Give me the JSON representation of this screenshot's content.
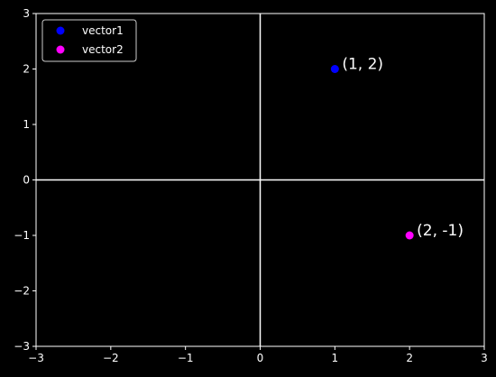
{
  "chart_data": {
    "type": "scatter",
    "title": "",
    "xlabel": "",
    "ylabel": "",
    "xlim": [
      -3,
      3
    ],
    "ylim": [
      -3,
      3
    ],
    "x_ticks": [
      -3,
      -2,
      -1,
      0,
      1,
      2,
      3
    ],
    "y_ticks": [
      -3,
      -2,
      -1,
      0,
      1,
      2,
      3
    ],
    "x_tick_labels": [
      "−3",
      "−2",
      "−1",
      "0",
      "1",
      "2",
      "3"
    ],
    "y_tick_labels": [
      "−3",
      "−2",
      "−1",
      "0",
      "1",
      "2",
      "3"
    ],
    "grid": false,
    "axis_lines_through_origin": true,
    "legend_position": "upper-left",
    "background": "#000000",
    "foreground": "#ffffff",
    "series": [
      {
        "name": "vector1",
        "color": "#0000ff",
        "points": [
          {
            "x": 1,
            "y": 2,
            "label": "(1, 2)"
          }
        ]
      },
      {
        "name": "vector2",
        "color": "#ff00ff",
        "points": [
          {
            "x": 2,
            "y": -1,
            "label": "(2, -1)"
          }
        ]
      }
    ]
  }
}
